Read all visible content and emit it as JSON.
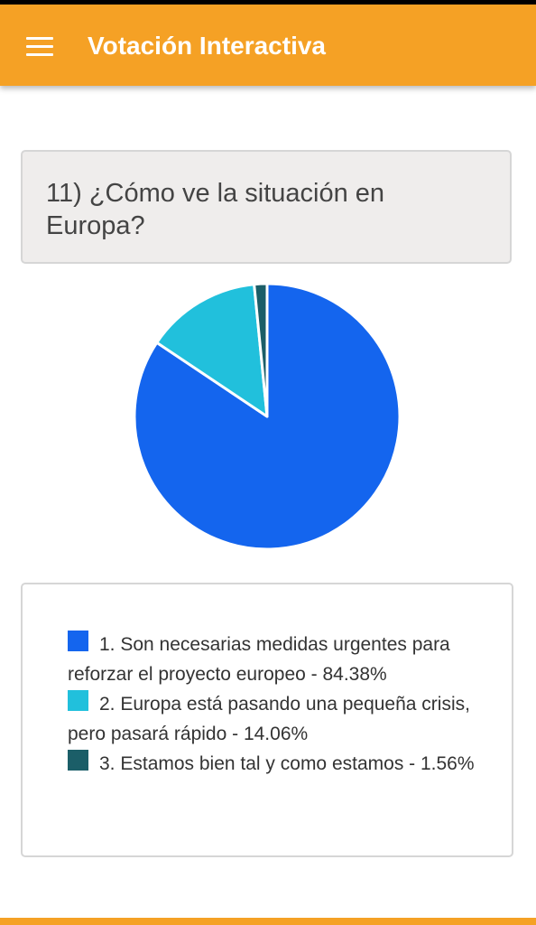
{
  "app_bar": {
    "title": "Votación Interactiva",
    "menu_icon": "hamburger-menu-icon",
    "background_color": "#f5a125"
  },
  "question": {
    "text": "11) ¿Cómo ve la situación en Europa?"
  },
  "chart_data": {
    "type": "pie",
    "title": "",
    "categories": [
      "1. Son necesarias medidas urgentes para reforzar el proyecto europeo",
      "2. Europa está pasando una pequeña crisis, pero pasará rápido",
      "3. Estamos bien tal y como estamos"
    ],
    "values": [
      84.38,
      14.06,
      1.56
    ],
    "colors": [
      "#1465ee",
      "#21c0dc",
      "#1b5e68"
    ],
    "legend_position": "bottom"
  },
  "legend": {
    "items": [
      {
        "label": "1. Son necesarias medidas urgentes para reforzar el proyecto europeo - 84.38%",
        "color": "#1465ee"
      },
      {
        "label": "2. Europa está pasando una pequeña crisis, pero pasará rápido - 14.06%",
        "color": "#21c0dc"
      },
      {
        "label": "3. Estamos bien tal y como estamos - 1.56%",
        "color": "#1b5e68"
      }
    ]
  }
}
